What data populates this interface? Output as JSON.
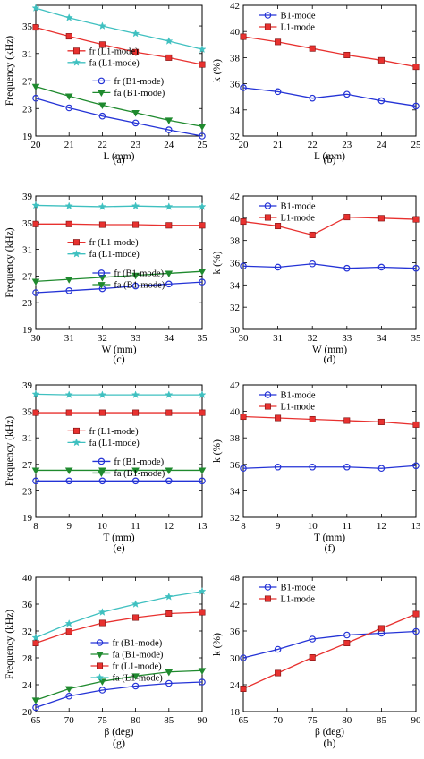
{
  "chart_data": [
    {
      "type": "line",
      "panel_label": "(a)",
      "xlabel": "L (mm)",
      "ylabel": "Frequency (kHz)",
      "x": [
        20,
        21,
        22,
        23,
        24,
        25
      ],
      "xlim": [
        20,
        25
      ],
      "ylim": [
        19,
        38
      ],
      "yticks": [
        19,
        23,
        27,
        31,
        35
      ],
      "ytick_labels": [
        "19",
        "23",
        "27",
        "31",
        "35"
      ],
      "series": [
        {
          "name": "fr (L1-mode)",
          "color": "#e8312f",
          "marker": "square",
          "values": [
            34.8,
            33.5,
            32.3,
            31.2,
            30.4,
            29.4
          ]
        },
        {
          "name": "fa (L1-mode)",
          "color": "#3fc0c0",
          "marker": "star",
          "values": [
            37.6,
            36.2,
            35.0,
            33.9,
            32.8,
            31.6
          ]
        },
        {
          "name": "fr (B1-mode)",
          "color": "#2433d6",
          "marker": "circle",
          "values": [
            24.5,
            23.1,
            21.9,
            20.9,
            19.9,
            19.0
          ]
        },
        {
          "name": "fa (B1-mode)",
          "color": "#1f8a2e",
          "marker": "triangle-down",
          "values": [
            26.2,
            24.8,
            23.5,
            22.4,
            21.3,
            20.4
          ]
        }
      ],
      "legend_groups": [
        {
          "anchor": "upper-middle",
          "items": [
            0,
            1
          ]
        },
        {
          "anchor": "lower-middle",
          "items": [
            2,
            3
          ]
        }
      ]
    },
    {
      "type": "line",
      "panel_label": "(b)",
      "xlabel": "L (mm)",
      "ylabel": "k (%)",
      "x": [
        20,
        21,
        22,
        23,
        24,
        25
      ],
      "xlim": [
        20,
        25
      ],
      "ylim": [
        32,
        42
      ],
      "yticks": [
        32,
        34,
        36,
        38,
        40,
        42
      ],
      "ytick_labels": [
        "32",
        "34",
        "36",
        "38",
        "40",
        "42"
      ],
      "series": [
        {
          "name": "B1-mode",
          "color": "#2433d6",
          "marker": "circle",
          "values": [
            35.7,
            35.4,
            34.9,
            35.2,
            34.7,
            34.3
          ]
        },
        {
          "name": "L1-mode",
          "color": "#e8312f",
          "marker": "square",
          "values": [
            39.6,
            39.2,
            38.7,
            38.2,
            37.8,
            37.3
          ]
        }
      ],
      "legend_groups": [
        {
          "anchor": "top-left",
          "items": [
            0,
            1
          ]
        }
      ]
    },
    {
      "type": "line",
      "panel_label": "(c)",
      "xlabel": "W (mm)",
      "ylabel": "Frequency (kHz)",
      "x": [
        30,
        31,
        32,
        33,
        34,
        35
      ],
      "xlim": [
        30,
        35
      ],
      "ylim": [
        19,
        39
      ],
      "yticks": [
        19,
        23,
        27,
        31,
        35,
        39
      ],
      "ytick_labels": [
        "19",
        "23",
        "27",
        "31",
        "35",
        "39"
      ],
      "series": [
        {
          "name": "fr (L1-mode)",
          "color": "#e8312f",
          "marker": "square",
          "values": [
            34.8,
            34.8,
            34.7,
            34.7,
            34.6,
            34.6
          ]
        },
        {
          "name": "fa (L1-mode)",
          "color": "#3fc0c0",
          "marker": "star",
          "values": [
            37.6,
            37.5,
            37.4,
            37.5,
            37.4,
            37.4
          ]
        },
        {
          "name": "fr (B1-mode)",
          "color": "#2433d6",
          "marker": "circle",
          "values": [
            24.5,
            24.8,
            25.1,
            25.5,
            25.8,
            26.1
          ]
        },
        {
          "name": "fa (B1-mode)",
          "color": "#1f8a2e",
          "marker": "triangle-down",
          "values": [
            26.2,
            26.5,
            26.8,
            27.1,
            27.4,
            27.7
          ]
        }
      ],
      "legend_groups": [
        {
          "anchor": "upper-middle",
          "items": [
            0,
            1
          ]
        },
        {
          "anchor": "lower-middle",
          "items": [
            2,
            3
          ]
        }
      ]
    },
    {
      "type": "line",
      "panel_label": "(d)",
      "xlabel": "W (mm)",
      "ylabel": "k (%)",
      "x": [
        30,
        31,
        32,
        33,
        34,
        35
      ],
      "xlim": [
        30,
        35
      ],
      "ylim": [
        30,
        42
      ],
      "yticks": [
        30,
        32,
        34,
        36,
        38,
        40,
        42
      ],
      "ytick_labels": [
        "30",
        "32",
        "34",
        "36",
        "38",
        "40",
        "42"
      ],
      "series": [
        {
          "name": "B1-mode",
          "color": "#2433d6",
          "marker": "circle",
          "values": [
            35.7,
            35.6,
            35.9,
            35.5,
            35.6,
            35.5
          ]
        },
        {
          "name": "L1-mode",
          "color": "#e8312f",
          "marker": "square",
          "values": [
            39.7,
            39.3,
            38.5,
            40.1,
            40.0,
            39.9
          ]
        }
      ],
      "legend_groups": [
        {
          "anchor": "top-left",
          "items": [
            0,
            1
          ]
        }
      ]
    },
    {
      "type": "line",
      "panel_label": "(e)",
      "xlabel": "T (mm)",
      "ylabel": "Frequency (kHz)",
      "x": [
        8,
        9,
        10,
        11,
        12,
        13
      ],
      "xlim": [
        8,
        13
      ],
      "ylim": [
        19,
        39
      ],
      "yticks": [
        19,
        23,
        27,
        31,
        35,
        39
      ],
      "ytick_labels": [
        "19",
        "23",
        "27",
        "31",
        "35",
        "39"
      ],
      "series": [
        {
          "name": "fr (L1-mode)",
          "color": "#e8312f",
          "marker": "square",
          "values": [
            34.8,
            34.8,
            34.8,
            34.8,
            34.8,
            34.8
          ]
        },
        {
          "name": "fa (L1-mode)",
          "color": "#3fc0c0",
          "marker": "star",
          "values": [
            37.6,
            37.5,
            37.5,
            37.5,
            37.5,
            37.5
          ]
        },
        {
          "name": "fr (B1-mode)",
          "color": "#2433d6",
          "marker": "circle",
          "values": [
            24.5,
            24.5,
            24.5,
            24.5,
            24.5,
            24.5
          ]
        },
        {
          "name": "fa (B1-mode)",
          "color": "#1f8a2e",
          "marker": "triangle-down",
          "values": [
            26.1,
            26.1,
            26.1,
            26.1,
            26.1,
            26.1
          ]
        }
      ],
      "legend_groups": [
        {
          "anchor": "upper-middle",
          "items": [
            0,
            1
          ]
        },
        {
          "anchor": "lower-middle",
          "items": [
            2,
            3
          ]
        }
      ]
    },
    {
      "type": "line",
      "panel_label": "(f)",
      "xlabel": "T (mm)",
      "ylabel": "k (%)",
      "x": [
        8,
        9,
        10,
        11,
        12,
        13
      ],
      "xlim": [
        8,
        13
      ],
      "ylim": [
        32,
        42
      ],
      "yticks": [
        32,
        34,
        36,
        38,
        40,
        42
      ],
      "ytick_labels": [
        "32",
        "34",
        "36",
        "38",
        "40",
        "42"
      ],
      "series": [
        {
          "name": "B1-mode",
          "color": "#2433d6",
          "marker": "circle",
          "values": [
            35.7,
            35.8,
            35.8,
            35.8,
            35.7,
            35.9
          ]
        },
        {
          "name": "L1-mode",
          "color": "#e8312f",
          "marker": "square",
          "values": [
            39.6,
            39.5,
            39.4,
            39.3,
            39.2,
            39.0
          ]
        }
      ],
      "legend_groups": [
        {
          "anchor": "top-left",
          "items": [
            0,
            1
          ]
        }
      ]
    },
    {
      "type": "line",
      "panel_label": "(g)",
      "xlabel": "β (deg)",
      "ylabel": "Frequency (kHz)",
      "x": [
        65,
        70,
        75,
        80,
        85,
        90
      ],
      "xlim": [
        65,
        90
      ],
      "ylim": [
        20,
        40
      ],
      "yticks": [
        20,
        24,
        28,
        32,
        36,
        40
      ],
      "ytick_labels": [
        "20",
        "24",
        "28",
        "32",
        "36",
        "40"
      ],
      "series": [
        {
          "name": "fr (B1-mode)",
          "color": "#2433d6",
          "marker": "circle",
          "values": [
            20.6,
            22.3,
            23.2,
            23.8,
            24.2,
            24.4
          ]
        },
        {
          "name": "fa (B1-mode)",
          "color": "#1f8a2e",
          "marker": "triangle-down",
          "values": [
            21.7,
            23.4,
            24.5,
            25.3,
            25.9,
            26.1
          ]
        },
        {
          "name": "fr (L1-mode)",
          "color": "#e8312f",
          "marker": "square",
          "values": [
            30.2,
            31.9,
            33.2,
            34.0,
            34.6,
            34.8
          ]
        },
        {
          "name": "fa (L1-mode)",
          "color": "#3fc0c0",
          "marker": "star",
          "values": [
            31.0,
            33.1,
            34.8,
            36.0,
            37.1,
            37.9
          ]
        }
      ],
      "legend_groups": [
        {
          "anchor": "middle-center",
          "items": [
            0,
            1,
            2,
            3
          ]
        }
      ]
    },
    {
      "type": "line",
      "panel_label": "(h)",
      "xlabel": "β (deg)",
      "ylabel": "k (%)",
      "x": [
        65,
        70,
        75,
        80,
        85,
        90
      ],
      "xlim": [
        65,
        90
      ],
      "ylim": [
        18,
        48
      ],
      "yticks": [
        18,
        24,
        30,
        36,
        42,
        48
      ],
      "ytick_labels": [
        "18",
        "24",
        "30",
        "36",
        "42",
        "48"
      ],
      "series": [
        {
          "name": "B1-mode",
          "color": "#2433d6",
          "marker": "circle",
          "values": [
            30.0,
            31.9,
            34.2,
            35.1,
            35.5,
            35.9
          ]
        },
        {
          "name": "L1-mode",
          "color": "#e8312f",
          "marker": "square",
          "values": [
            23.1,
            26.6,
            30.1,
            33.3,
            36.6,
            39.8
          ]
        }
      ],
      "legend_groups": [
        {
          "anchor": "top-left",
          "items": [
            0,
            1
          ]
        }
      ]
    }
  ]
}
